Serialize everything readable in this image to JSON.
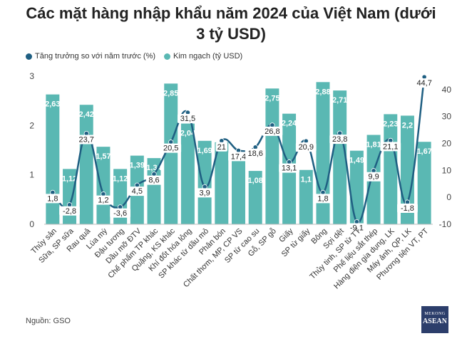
{
  "title_line1": "Các mặt hàng nhập khẩu năm 2024 của Việt Nam (dưới",
  "title_line2": "3 tỷ USD)",
  "source": "Nguồn: GSO",
  "logo": {
    "line1": "MEKONG",
    "line2": "ASEAN"
  },
  "colors": {
    "bar": "#5ab8b3",
    "line": "#1f5f82",
    "label_bg": "#ffffff"
  },
  "chart_data": {
    "type": "bar+line",
    "categories": [
      "Thủy sản",
      "Sữa, SP sữa",
      "Rau quả",
      "Lúa mỳ",
      "Đậu tương",
      "Dầu mỡ ĐTV",
      "Chế phẩm TP khác",
      "Quặng, KS khác",
      "Khí đốt hóa lỏng",
      "SP khác từ dầu mỏ",
      "Phân bón",
      "Chất thơm, MP, CP VS",
      "SP từ cao su",
      "Gỗ, SP gỗ",
      "Giấy",
      "SP từ giấy",
      "Bông",
      "Sợi dệt",
      "Thủy tinh, SP từ TT",
      "Phế liệu sắt thép",
      "Hàng điện gia dụng, LK",
      "Máy ảnh, QP, LK",
      "Phương tiện VT, PT"
    ],
    "series": [
      {
        "name": "Kim ngạch (tỷ USD)",
        "type": "bar",
        "axis": "left",
        "values": [
          2.63,
          1.12,
          2.42,
          1.57,
          1.12,
          1.39,
          1.34,
          2.85,
          2.04,
          1.69,
          1.66,
          1.31,
          1.08,
          2.75,
          2.24,
          1.1,
          2.88,
          2.71,
          1.49,
          1.81,
          2.23,
          2.2,
          1.67
        ],
        "labels": [
          "2,63",
          "1,12",
          "2,42",
          "1,57",
          "1,12",
          "1,39",
          "1,34",
          "2,85",
          "2,04",
          "1,69",
          "",
          "",
          "1,08",
          "2,75",
          "2,24",
          "1,1",
          "2,88",
          "2,71",
          "1,49",
          "1,81",
          "2,23",
          "2,2",
          "1,67"
        ]
      },
      {
        "name": "Tăng trưởng so với năm trước (%)",
        "type": "line",
        "axis": "right",
        "values": [
          1.8,
          -2.8,
          23.7,
          1.2,
          -3.6,
          4.5,
          8.6,
          20.5,
          31.5,
          3.9,
          21,
          17.4,
          18.6,
          26.8,
          13.1,
          20.9,
          1.8,
          23.8,
          -9.1,
          9.9,
          21.1,
          -1.8,
          44.7
        ],
        "labels": [
          "1,8",
          "-2,8",
          "23,7",
          "1,2",
          "-3,6",
          "4,5",
          "8,6",
          "20,5",
          "31,5",
          "3,9",
          "21",
          "17,4",
          "18,6",
          "26,8",
          "13,1",
          "20,9",
          "1,8",
          "23,8",
          "-9,1",
          "9,9",
          "21,1",
          "-1,8",
          "44,7"
        ]
      }
    ],
    "y_left": {
      "range": [
        0,
        3
      ],
      "ticks": [
        "0",
        "1",
        "2",
        "3"
      ]
    },
    "y_right": {
      "range": [
        -10,
        45
      ],
      "ticks": [
        "-10",
        "0",
        "10",
        "20",
        "30",
        "40"
      ]
    },
    "legend_position": "top-left",
    "grid": false
  }
}
